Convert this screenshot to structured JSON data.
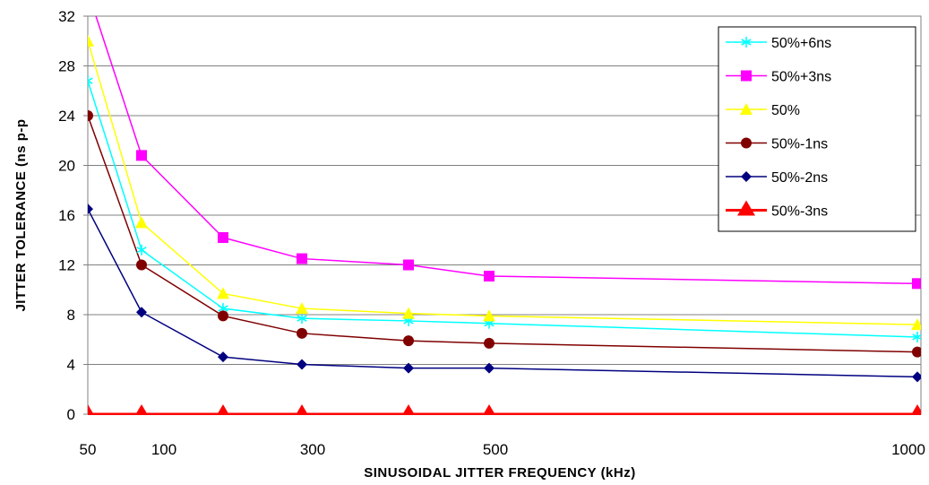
{
  "chart_data": {
    "type": "line",
    "xlabel": "SINUSOIDAL JITTER FREQUENCY (kHz)",
    "ylabel": "JITTER TOLERANCE (ns p-p",
    "ylim": [
      0,
      32
    ],
    "y_ticks": [
      0,
      4,
      8,
      12,
      16,
      20,
      24,
      28,
      32
    ],
    "x_tick_labels": [
      "50",
      "100",
      "300",
      "500",
      "1000"
    ],
    "x": [
      50,
      100,
      200,
      300,
      400,
      500,
      1000
    ],
    "grid": "horizontal",
    "legend_position": "top-right",
    "series": [
      {
        "name": "50%+6ns",
        "color": "#00ffff",
        "marker": "asterisk",
        "values": [
          26.8,
          13.2,
          8.5,
          7.7,
          7.5,
          7.3,
          6.2
        ]
      },
      {
        "name": "50%+3ns",
        "color": "#ff00ff",
        "marker": "square",
        "values": [
          34,
          20.8,
          14.2,
          12.5,
          12.0,
          11.1,
          10.5
        ]
      },
      {
        "name": "50%",
        "color": "#ffff00",
        "marker": "triangle",
        "values": [
          30.0,
          15.4,
          9.7,
          8.5,
          8.1,
          7.9,
          7.2
        ]
      },
      {
        "name": "50%-1ns",
        "color": "#800000",
        "marker": "circle",
        "values": [
          24.0,
          12.0,
          7.9,
          6.5,
          5.9,
          5.7,
          5.0
        ]
      },
      {
        "name": "50%-2ns",
        "color": "#000080",
        "marker": "diamond",
        "values": [
          16.5,
          8.2,
          4.6,
          4.0,
          3.7,
          3.7,
          3.0
        ]
      },
      {
        "name": "50%-3ns",
        "color": "#ff0000",
        "marker": "big-triangle",
        "values": [
          0,
          0,
          0,
          0,
          0,
          0,
          0
        ]
      }
    ]
  }
}
